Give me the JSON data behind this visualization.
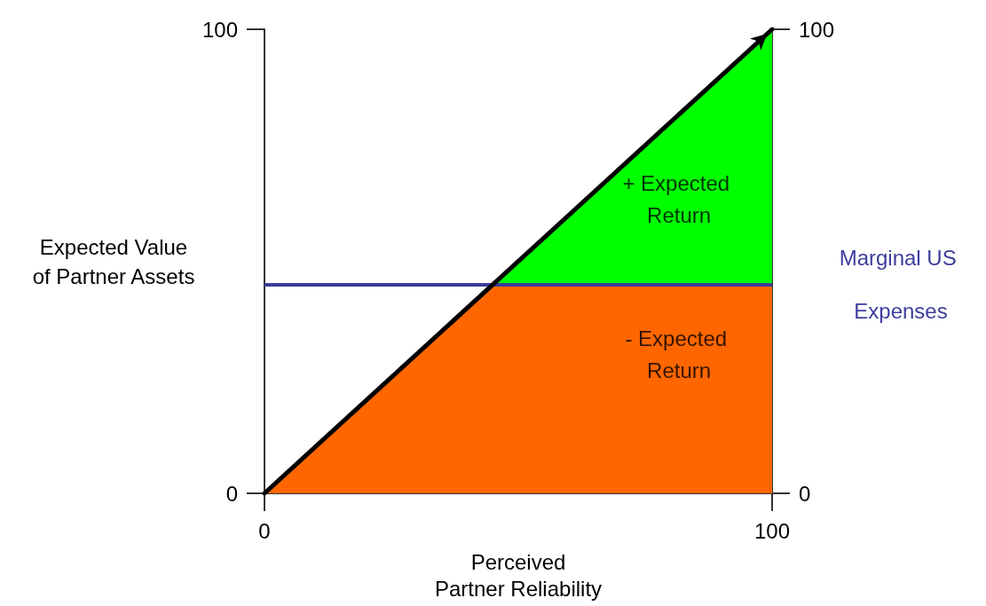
{
  "chart_data": {
    "type": "area",
    "xlabel": "Perceived\nPartner Reliability",
    "ylabel": "Expected Value\nof Partner Assets",
    "x": [
      0,
      45,
      100
    ],
    "series": [
      {
        "color": "#00ff00",
        "values": [
          null,
          45,
          100
        ]
      },
      {
        "color": "#ff6600",
        "values": [
          0,
          45,
          45
        ]
      },
      {
        "type": "line",
        "color": "#000000",
        "values": [
          0,
          45,
          100
        ]
      }
    ],
    "xlim": [
      0,
      100
    ],
    "xticks": [
      0,
      100
    ],
    "ylim": [
      0,
      100
    ],
    "yticks": [
      0,
      100
    ],
    "y2lim": [
      0,
      100
    ],
    "y2ticks": [
      0,
      100
    ],
    "ref_lines": [
      {
        "axis": "y",
        "value": 45,
        "label": "Marginal US Expenses",
        "color": "#3c3c9c"
      }
    ],
    "annotations": [
      "+ Expected Return",
      "- Expected Return"
    ],
    "grid": false
  }
}
